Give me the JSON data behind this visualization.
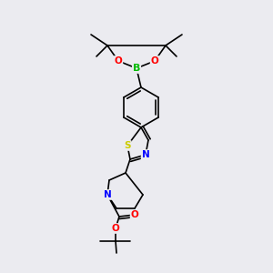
{
  "bg_color": "#ebebf0",
  "atom_colors": {
    "B": "#00bb00",
    "O": "#ff0000",
    "N": "#0000ff",
    "S": "#cccc00",
    "C": "#000000"
  },
  "figsize": [
    3.0,
    3.0
  ],
  "dpi": 100
}
